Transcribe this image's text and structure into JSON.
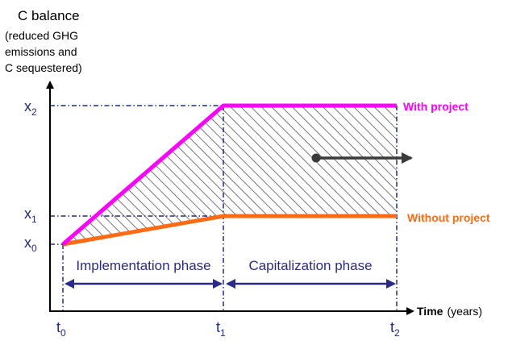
{
  "y_axis": {
    "label_lines": [
      "C balance",
      "(reduced GHG",
      "emissions and",
      "C sequestered)"
    ],
    "ticks": [
      {
        "main": "x",
        "sub": "2"
      },
      {
        "main": "x",
        "sub": "1"
      },
      {
        "main": "x",
        "sub": "0"
      }
    ]
  },
  "x_axis": {
    "label_bold": "Time",
    "label_unit": "(years)",
    "ticks": [
      {
        "main": "t",
        "sub": "0"
      },
      {
        "main": "t",
        "sub": "1"
      },
      {
        "main": "t",
        "sub": "2"
      }
    ]
  },
  "series": {
    "with_project": {
      "label": "With project",
      "color": "#ff00ff"
    },
    "without_project": {
      "label": "Without project",
      "color": "#ff6a13"
    }
  },
  "phases": {
    "implementation": "Implementation phase",
    "capitalization": "Capitalization phase",
    "color": "#2a2a8c"
  },
  "colors": {
    "axis": "#000000",
    "guide": "#1f2a8a",
    "hatch": "#555555",
    "arrow": "#3a3a3a"
  }
}
